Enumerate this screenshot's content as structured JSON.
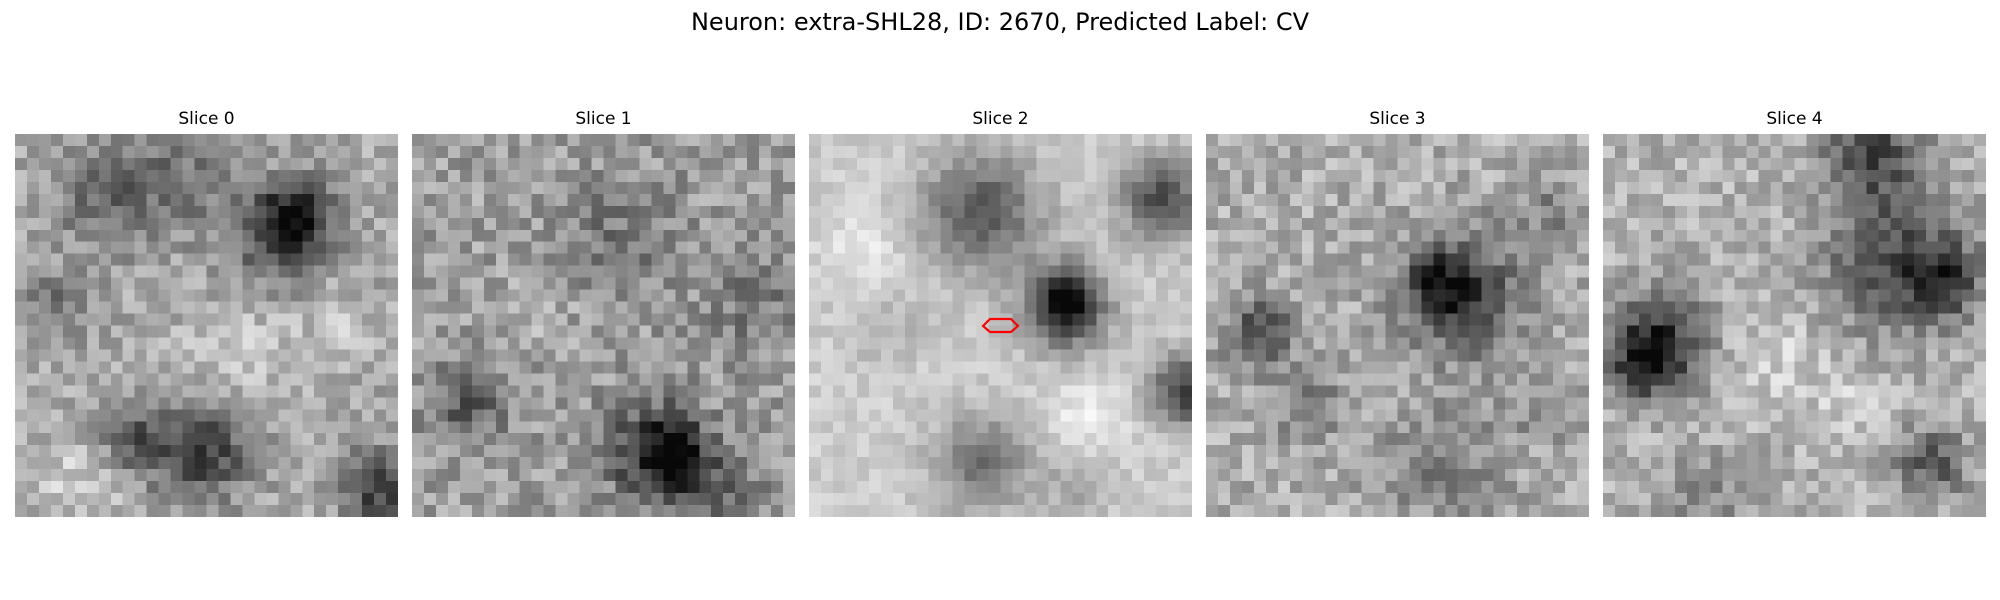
{
  "title": "Neuron: extra-SHL28, ID: 2670, Predicted Label: CV",
  "slices": [
    {
      "label": "Slice 0"
    },
    {
      "label": "Slice 1"
    },
    {
      "label": "Slice 2"
    },
    {
      "label": "Slice 3"
    },
    {
      "label": "Slice 4"
    }
  ],
  "marker": {
    "slice": 2,
    "color": "#ff0000"
  }
}
